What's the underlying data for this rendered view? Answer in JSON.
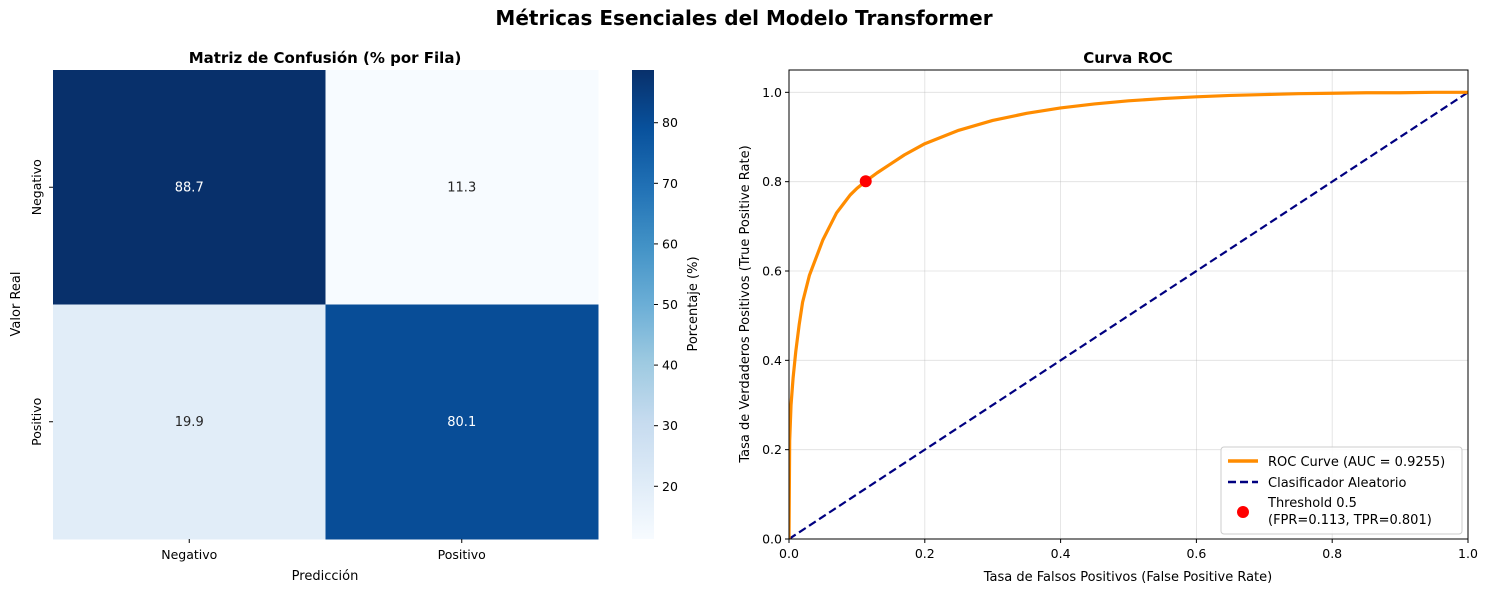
{
  "figure_title": "Métricas Esenciales del Modelo Transformer",
  "chart_data": [
    {
      "type": "heatmap",
      "title": "Matriz de Confusión (% por Fila)",
      "xlabel": "Predicción",
      "ylabel": "Valor Real",
      "x_categories": [
        "Negativo",
        "Positivo"
      ],
      "y_categories": [
        "Negativo",
        "Positivo"
      ],
      "values": [
        [
          88.7,
          11.3
        ],
        [
          19.9,
          80.1
        ]
      ],
      "value_labels": [
        [
          "88.7",
          "11.3"
        ],
        [
          "19.9",
          "80.1"
        ]
      ],
      "colormap": "Blues",
      "colorbar": {
        "label": "Porcentaje (%)",
        "range": [
          11.3,
          88.7
        ],
        "ticks": [
          20,
          30,
          40,
          50,
          60,
          70,
          80
        ],
        "tick_labels": [
          "20",
          "30",
          "40",
          "50",
          "60",
          "70",
          "80"
        ]
      }
    },
    {
      "type": "line",
      "title": "Curva ROC",
      "xlabel": "Tasa de Falsos Positivos (False Positive Rate)",
      "ylabel": "Tasa de Verdaderos Positivos (True Positive Rate)",
      "xlim": [
        0,
        1
      ],
      "ylim": [
        0,
        1.05
      ],
      "x_ticks": [
        0,
        0.2,
        0.4,
        0.6,
        0.8,
        1
      ],
      "x_tick_labels": [
        "0.0",
        "0.2",
        "0.4",
        "0.6",
        "0.8",
        "1.0"
      ],
      "y_ticks": [
        0,
        0.2,
        0.4,
        0.6,
        0.8,
        1
      ],
      "y_tick_labels": [
        "0.0",
        "0.2",
        "0.4",
        "0.6",
        "0.8",
        "1.0"
      ],
      "grid": true,
      "legend_position": "bottom-right",
      "series": [
        {
          "name": "ROC Curve (AUC = 0.9255)",
          "color": "#ff8c00",
          "style": "solid",
          "x": [
            0,
            0.001,
            0.003,
            0.006,
            0.01,
            0.015,
            0.02,
            0.025,
            0.03,
            0.04,
            0.05,
            0.06,
            0.07,
            0.08,
            0.09,
            0.1,
            0.113,
            0.13,
            0.15,
            0.17,
            0.2,
            0.25,
            0.3,
            0.35,
            0.4,
            0.45,
            0.5,
            0.55,
            0.6,
            0.65,
            0.7,
            0.75,
            0.8,
            0.85,
            0.9,
            0.95,
            1
          ],
          "y": [
            0,
            0.22,
            0.3,
            0.36,
            0.42,
            0.48,
            0.53,
            0.56,
            0.59,
            0.63,
            0.67,
            0.7,
            0.73,
            0.75,
            0.77,
            0.785,
            0.801,
            0.82,
            0.84,
            0.86,
            0.885,
            0.915,
            0.937,
            0.953,
            0.965,
            0.974,
            0.981,
            0.986,
            0.99,
            0.993,
            0.995,
            0.997,
            0.998,
            0.999,
            0.999,
            1.0,
            1.0
          ]
        },
        {
          "name": "Clasificador Aleatorio",
          "color": "#000080",
          "style": "dashed",
          "x": [
            0,
            1
          ],
          "y": [
            0,
            1
          ]
        }
      ],
      "points": [
        {
          "name_line1": "Threshold 0.5",
          "name_line2": "(FPR=0.113, TPR=0.801)",
          "x": 0.113,
          "y": 0.801,
          "color": "#ff0000"
        }
      ]
    }
  ]
}
